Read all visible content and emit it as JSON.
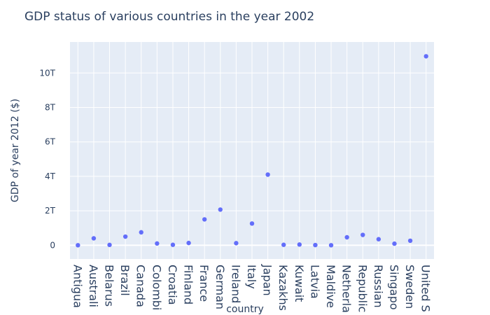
{
  "chart_data": {
    "type": "scatter",
    "title": "GDP status of various countries in the year 2002",
    "xlabel": "country",
    "ylabel": "GDP of year 2012 ($)",
    "ylim": [
      -800000000000,
      11800000000000
    ],
    "y_ticks": [
      0,
      2000000000000,
      4000000000000,
      6000000000000,
      8000000000000,
      10000000000000
    ],
    "y_tick_labels": [
      "0",
      "2T",
      "4T",
      "6T",
      "8T",
      "10T"
    ],
    "grid": true,
    "marker_color": "#636efa",
    "plot_bg": "#e5ecf6",
    "categories": [
      "Antigua",
      "Australi",
      "Belarus",
      "Brazil",
      "Canada",
      "Colombi",
      "Croatia",
      "Finland",
      "France",
      "German",
      "Ireland",
      "Italy",
      "Japan",
      "Kazakhs",
      "Kuwait",
      "Latvia",
      "Maldive",
      "Netherla",
      "Republic",
      "Russian",
      "Singapo",
      "Sweden",
      "United S"
    ],
    "values": [
      0,
      400000000000,
      20000000000,
      500000000000,
      750000000000,
      100000000000,
      25000000000,
      130000000000,
      1500000000000,
      2070000000000,
      120000000000,
      1260000000000,
      4100000000000,
      25000000000,
      40000000000,
      10000000000,
      0,
      460000000000,
      600000000000,
      350000000000,
      90000000000,
      260000000000,
      10970000000000
    ]
  }
}
